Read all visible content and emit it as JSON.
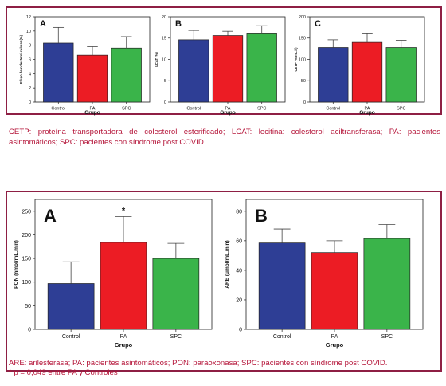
{
  "colors": {
    "border": "#8e1f44",
    "caption": "#b5163a",
    "control": "#2e3e95",
    "pa": "#ec1c24",
    "spc": "#3ab44a"
  },
  "captions": {
    "top": "CETP: proteína transportadora de colesterol esterificado; LCAT: lecitina: colesterol aciltransferasa; PA: pacientes asintomáticos; SPC: pacientes con síndrome post COVID.",
    "bottom_line1": "ARE: arilesterasa; PA: pacientes asintomáticos; PON: paraoxonasa; SPC: pacientes con síndrome post COVID.",
    "bottom_line2": "* p = 0,049 entre PA y Controles"
  },
  "chart_data": [
    {
      "id": "top-A",
      "type": "bar",
      "panel_label": "A",
      "ylabel": "Eflujo de colesterol celular (%)",
      "xlabel": "Grupo",
      "categories": [
        "Control",
        "PA",
        "SPC"
      ],
      "values": [
        8.3,
        6.6,
        7.6
      ],
      "errors": [
        2.2,
        1.2,
        1.6
      ],
      "ylim": [
        0,
        12
      ],
      "yticks": [
        "0",
        "2",
        "4",
        "6",
        "8",
        "10",
        "12"
      ],
      "annotations": []
    },
    {
      "id": "top-B",
      "type": "bar",
      "panel_label": "B",
      "ylabel": "LCAT (%)",
      "xlabel": "Grupo",
      "categories": [
        "Control",
        "PA",
        "SPC"
      ],
      "values": [
        14.6,
        15.6,
        16.0
      ],
      "errors": [
        2.2,
        1.0,
        1.9
      ],
      "ylim": [
        0,
        20
      ],
      "yticks": [
        "0",
        "5",
        "10",
        "15",
        "20"
      ],
      "annotations": []
    },
    {
      "id": "top-C",
      "type": "bar",
      "panel_label": "C",
      "ylabel": "CETP (%/mL.h)",
      "xlabel": "Grupo",
      "categories": [
        "Control",
        "PA",
        "SPC"
      ],
      "values": [
        128,
        140,
        128
      ],
      "errors": [
        18,
        20,
        17
      ],
      "ylim": [
        0,
        200
      ],
      "yticks": [
        "0",
        "50",
        "100",
        "150",
        "200"
      ],
      "annotations": []
    },
    {
      "id": "bottom-A",
      "type": "bar",
      "panel_label": "A",
      "ylabel": "PON (nmol/mL.min)",
      "xlabel": "Grupo",
      "categories": [
        "Control",
        "PA",
        "SPC"
      ],
      "values": [
        97,
        184,
        150
      ],
      "errors": [
        46,
        55,
        32
      ],
      "ylim": [
        0,
        275
      ],
      "yticks": [
        "0",
        "50",
        "100",
        "150",
        "200",
        "250"
      ],
      "annotations": [
        {
          "category": "PA",
          "text": "*"
        }
      ]
    },
    {
      "id": "bottom-B",
      "type": "bar",
      "panel_label": "B",
      "ylabel": "ARE (umol/mL.min)",
      "xlabel": "Grupo",
      "categories": [
        "Control",
        "PA",
        "SPC"
      ],
      "values": [
        58.5,
        52.0,
        61.5
      ],
      "errors": [
        9.5,
        8.0,
        9.5
      ],
      "ylim": [
        0,
        88
      ],
      "yticks": [
        "0",
        "20",
        "40",
        "60",
        "80"
      ],
      "annotations": []
    }
  ]
}
